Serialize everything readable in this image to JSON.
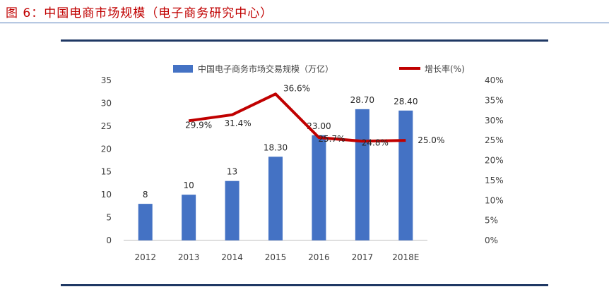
{
  "caption": "图 6：中国电商市场规模（电子商务研究中心）",
  "chart_data": {
    "type": "bar+line",
    "categories": [
      "2012",
      "2013",
      "2014",
      "2015",
      "2016",
      "2017",
      "2018E"
    ],
    "series": [
      {
        "name": "中国电子商务市场交易规模（万亿）",
        "type": "bar",
        "axis": "left",
        "values": [
          8,
          10,
          13,
          18.3,
          23,
          28.7,
          28.4
        ],
        "labels": [
          "8",
          "10",
          "13",
          "18.30",
          "23.00",
          "28.70",
          "28.40"
        ],
        "color": "#4472c4"
      },
      {
        "name": "增长率(%)",
        "type": "line",
        "axis": "right",
        "values": [
          null,
          29.9,
          31.4,
          36.6,
          25.7,
          24.8,
          25.0
        ],
        "labels": [
          null,
          "29.9%",
          "31.4%",
          "36.6%",
          "25.7%",
          "24.8%",
          "25.0%"
        ],
        "color": "#c00000"
      }
    ],
    "y_left": {
      "ylim": [
        0,
        35
      ],
      "ticks": [
        "0",
        "5",
        "10",
        "15",
        "20",
        "25",
        "30",
        "35"
      ]
    },
    "y_right": {
      "ylim": [
        0,
        40
      ],
      "ticks": [
        "0%",
        "5%",
        "10%",
        "15%",
        "20%",
        "25%",
        "30%",
        "35%",
        "40%"
      ]
    },
    "grid": false,
    "legend_position": "top"
  }
}
